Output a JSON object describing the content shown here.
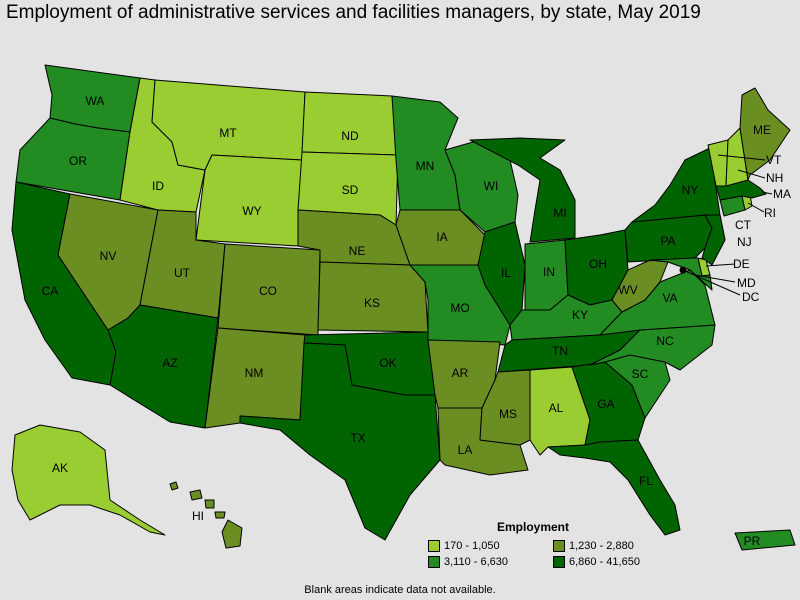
{
  "title": "Employment of administrative services and facilities managers, by state, May 2019",
  "legend": {
    "title": "Employment",
    "bins": [
      {
        "label": "170 - 1,050",
        "color": "#9acd32"
      },
      {
        "label": "1,230 - 2,880",
        "color": "#6b8e23"
      },
      {
        "label": "3,110 - 6,630",
        "color": "#228b22"
      },
      {
        "label": "6,860 - 41,650",
        "color": "#006400"
      }
    ]
  },
  "footnote": "Blank areas indicate data not available.",
  "states": [
    {
      "id": "WA",
      "label": "WA",
      "bin": 2
    },
    {
      "id": "OR",
      "label": "OR",
      "bin": 2
    },
    {
      "id": "CA",
      "label": "CA",
      "bin": 3
    },
    {
      "id": "NV",
      "label": "NV",
      "bin": 1
    },
    {
      "id": "ID",
      "label": "ID",
      "bin": 0
    },
    {
      "id": "MT",
      "label": "MT",
      "bin": 0
    },
    {
      "id": "WY",
      "label": "WY",
      "bin": 0
    },
    {
      "id": "UT",
      "label": "UT",
      "bin": 1
    },
    {
      "id": "AZ",
      "label": "AZ",
      "bin": 3
    },
    {
      "id": "CO",
      "label": "CO",
      "bin": 1
    },
    {
      "id": "NM",
      "label": "NM",
      "bin": 1
    },
    {
      "id": "ND",
      "label": "ND",
      "bin": 0
    },
    {
      "id": "SD",
      "label": "SD",
      "bin": 0
    },
    {
      "id": "NE",
      "label": "NE",
      "bin": 1
    },
    {
      "id": "KS",
      "label": "KS",
      "bin": 1
    },
    {
      "id": "OK",
      "label": "OK",
      "bin": 3
    },
    {
      "id": "TX",
      "label": "TX",
      "bin": 3
    },
    {
      "id": "MN",
      "label": "MN",
      "bin": 2
    },
    {
      "id": "IA",
      "label": "IA",
      "bin": 1
    },
    {
      "id": "MO",
      "label": "MO",
      "bin": 2
    },
    {
      "id": "AR",
      "label": "AR",
      "bin": 1
    },
    {
      "id": "LA",
      "label": "LA",
      "bin": 1
    },
    {
      "id": "WI",
      "label": "WI",
      "bin": 2
    },
    {
      "id": "IL",
      "label": "IL",
      "bin": 3
    },
    {
      "id": "MI",
      "label": "MI",
      "bin": 3
    },
    {
      "id": "IN",
      "label": "IN",
      "bin": 2
    },
    {
      "id": "OH",
      "label": "OH",
      "bin": 3
    },
    {
      "id": "KY",
      "label": "KY",
      "bin": 2
    },
    {
      "id": "TN",
      "label": "TN",
      "bin": 3
    },
    {
      "id": "MS",
      "label": "MS",
      "bin": 1
    },
    {
      "id": "AL",
      "label": "AL",
      "bin": 0
    },
    {
      "id": "GA",
      "label": "GA",
      "bin": 3
    },
    {
      "id": "FL",
      "label": "FL",
      "bin": 3
    },
    {
      "id": "SC",
      "label": "SC",
      "bin": 2
    },
    {
      "id": "NC",
      "label": "NC",
      "bin": 2
    },
    {
      "id": "VA",
      "label": "VA",
      "bin": 2
    },
    {
      "id": "WV",
      "label": "WV",
      "bin": 1
    },
    {
      "id": "PA",
      "label": "PA",
      "bin": 3
    },
    {
      "id": "NY",
      "label": "NY",
      "bin": 3
    },
    {
      "id": "NJ",
      "label": "NJ",
      "bin": 3
    },
    {
      "id": "DE",
      "label": "DE",
      "bin": 0
    },
    {
      "id": "MD",
      "label": "MD",
      "bin": 2
    },
    {
      "id": "DC",
      "label": "DC",
      "bin": 0
    },
    {
      "id": "CT",
      "label": "CT",
      "bin": 2
    },
    {
      "id": "RI",
      "label": "RI",
      "bin": 0
    },
    {
      "id": "MA",
      "label": "MA",
      "bin": 3
    },
    {
      "id": "VT",
      "label": "VT",
      "bin": 0
    },
    {
      "id": "NH",
      "label": "NH",
      "bin": 0
    },
    {
      "id": "ME",
      "label": "ME",
      "bin": 1
    },
    {
      "id": "AK",
      "label": "AK",
      "bin": 0
    },
    {
      "id": "HI",
      "label": "HI",
      "bin": 1
    },
    {
      "id": "PR",
      "label": "PR",
      "bin": 2
    }
  ]
}
